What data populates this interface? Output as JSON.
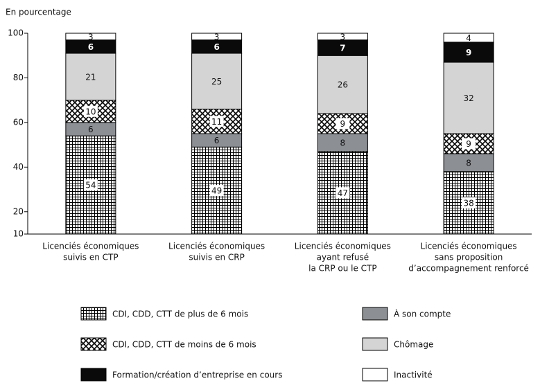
{
  "chart_data": {
    "type": "stacked_bar",
    "y_label": "En pourcentage",
    "categories": [
      [
        "Licenciés économiques",
        "suivis en CTP"
      ],
      [
        "Licenciés économiques",
        "suivis en CRP"
      ],
      [
        "Licenciés économiques",
        "ayant refusé",
        "la CRP ou le CTP"
      ],
      [
        "Licenciés économiques",
        "sans proposition",
        "d’accompagnement renforcé"
      ]
    ],
    "series": [
      {
        "name": "CDI, CDD, CTT de plus de 6 mois",
        "color": "#000000",
        "pattern": "grid",
        "values": [
          54,
          49,
          47,
          38
        ]
      },
      {
        "name": "À son compte",
        "color": "#8c8f94",
        "values": [
          6,
          6,
          8,
          8
        ]
      },
      {
        "name": "CDI, CDD, CTT de moins de 6 mois",
        "color": "#000000",
        "pattern": "cross",
        "values": [
          10,
          11,
          9,
          9
        ]
      },
      {
        "name": "Chômage",
        "color": "#d4d4d4",
        "values": [
          21,
          25,
          26,
          32
        ]
      },
      {
        "name": "Formation/création d’entreprise en cours",
        "color": "#0a0a0a",
        "values": [
          6,
          6,
          7,
          9
        ]
      },
      {
        "name": "Inactivité",
        "color": "#ffffff",
        "values": [
          3,
          3,
          3,
          4
        ]
      }
    ],
    "ylim": [
      10,
      100
    ],
    "yticks": [
      10,
      20,
      40,
      60,
      80,
      100
    ]
  }
}
